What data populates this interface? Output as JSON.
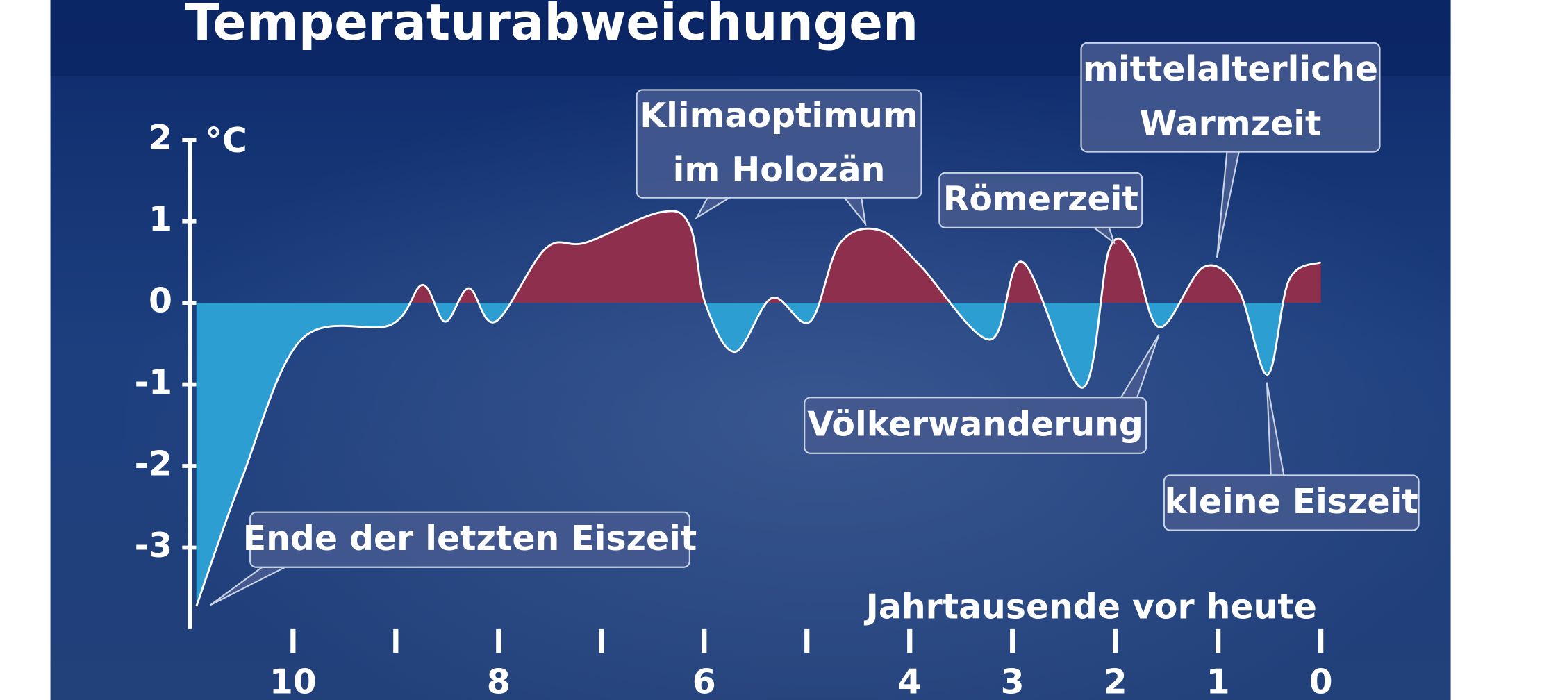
{
  "chart_data": {
    "type": "area",
    "title": "Temperaturabweichungen",
    "y_unit_label": "°C",
    "x_label": "Jahrtausende vor heute",
    "x": [
      10.94,
      10.5,
      9.92,
      9.05,
      8.74,
      8.52,
      8.29,
      8.03,
      7.54,
      7.15,
      6.43,
      6.14,
      5.99,
      5.7,
      5.34,
      4.97,
      4.68,
      4.29,
      3.9,
      3.22,
      2.9,
      2.32,
      2.06,
      1.83,
      1.57,
      1.14,
      0.8,
      0.52,
      0.31,
      0
    ],
    "values": [
      -3.72,
      -2.16,
      -0.45,
      -0.27,
      0.22,
      -0.23,
      0.18,
      -0.23,
      0.67,
      0.74,
      1.11,
      0.95,
      0,
      -0.6,
      0.06,
      -0.23,
      0.73,
      0.89,
      0.46,
      -0.45,
      0.5,
      -1.04,
      0.65,
      0.59,
      -0.3,
      0.44,
      0.16,
      -0.88,
      0.28,
      0.5
    ],
    "color_above": "#8e2f4e",
    "color_below": "#2c9ed1",
    "line_color": "#ffffff",
    "xlim": [
      11,
      0
    ],
    "xticks": [
      10,
      8,
      6,
      4,
      3,
      2,
      1,
      0
    ],
    "minor_xticks": [
      9,
      7,
      5
    ],
    "ylim": [
      -4,
      2
    ],
    "yticks": [
      2,
      1,
      0,
      -1,
      -2,
      -3
    ],
    "annotations": [
      {
        "lines": [
          "Ende der letzten Eiszeit"
        ]
      },
      {
        "lines": [
          "Klimaoptimum",
          "im Holozän"
        ]
      },
      {
        "lines": [
          "Römerzeit"
        ]
      },
      {
        "lines": [
          "mittelalterliche",
          "Warmzeit"
        ]
      },
      {
        "lines": [
          "Völkerwanderung"
        ]
      },
      {
        "lines": [
          "kleine Eiszeit"
        ]
      }
    ]
  }
}
